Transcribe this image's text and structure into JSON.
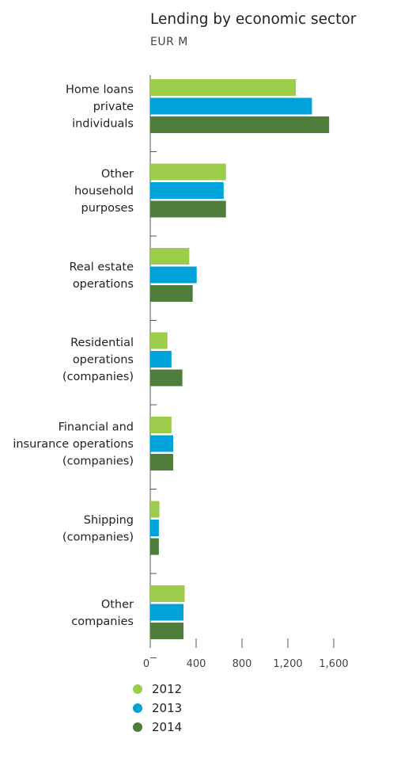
{
  "chart_data": {
    "type": "bar",
    "orientation": "horizontal",
    "title": "Lending by economic sector",
    "subtitle": "EUR M",
    "categories": [
      [
        "Home loans",
        "private",
        "individuals"
      ],
      [
        "Other",
        "household",
        "purposes"
      ],
      [
        "Real estate",
        "operations"
      ],
      [
        "Residential",
        "operations",
        "(companies)"
      ],
      [
        "Financial and",
        "insurance operations",
        "(companies)"
      ],
      [
        "Shipping",
        "(companies)"
      ],
      [
        "Other",
        "companies"
      ]
    ],
    "series": [
      {
        "name": "2012",
        "color": "#9dcb4b",
        "values": [
          1270,
          660,
          340,
          150,
          185,
          80,
          300
        ]
      },
      {
        "name": "2013",
        "color": "#00a3d9",
        "values": [
          1410,
          640,
          405,
          185,
          200,
          75,
          290
        ]
      },
      {
        "name": "2014",
        "color": "#4e7d3c",
        "values": [
          1560,
          660,
          370,
          280,
          200,
          75,
          290
        ]
      }
    ],
    "x_ticks": [
      "0",
      "400",
      "800",
      "1,200",
      "1,600"
    ],
    "x_tick_values": [
      0,
      400,
      800,
      1200,
      1600
    ],
    "xlim": [
      0,
      1600
    ],
    "grid": false,
    "legend_position": "bottom"
  }
}
